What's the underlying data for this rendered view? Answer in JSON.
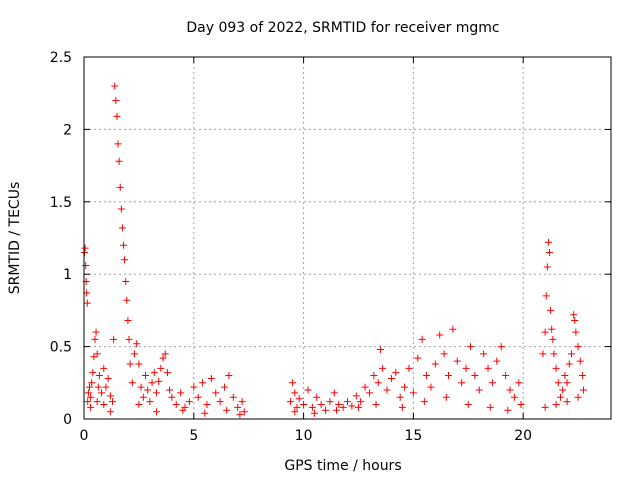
{
  "chart_data": {
    "type": "scatter",
    "title": "Day 093 of 2022, SRMTID for receiver mgmc",
    "xlabel": "GPS time / hours",
    "ylabel": "SRMTID / TECUs",
    "xlim": [
      0,
      24
    ],
    "ylim": [
      0,
      2.5
    ],
    "xticks": [
      0,
      5,
      10,
      15,
      20
    ],
    "xtick_labels": [
      "0",
      "5",
      "10",
      "15",
      "20"
    ],
    "yticks": [
      0,
      0.5,
      1,
      1.5,
      2,
      2.5
    ],
    "ytick_labels": [
      "0",
      "0.5",
      "1",
      "1.5",
      "2",
      "2.5"
    ],
    "grid": true,
    "marker": "+",
    "color": "#ff0000",
    "series": [
      {
        "name": "SRMTID",
        "points": [
          [
            0.02,
            1.15
          ],
          [
            0.05,
            1.18
          ],
          [
            0.08,
            1.06
          ],
          [
            0.1,
            0.95
          ],
          [
            0.12,
            0.87
          ],
          [
            0.15,
            0.8
          ],
          [
            0.17,
            0.12
          ],
          [
            0.2,
            0.18
          ],
          [
            0.25,
            0.22
          ],
          [
            0.3,
            0.15
          ],
          [
            0.35,
            0.25
          ],
          [
            0.4,
            0.32
          ],
          [
            0.45,
            0.43
          ],
          [
            0.5,
            0.55
          ],
          [
            0.55,
            0.6
          ],
          [
            0.6,
            0.45
          ],
          [
            0.65,
            0.22
          ],
          [
            0.7,
            0.3
          ],
          [
            0.8,
            0.18
          ],
          [
            0.9,
            0.35
          ],
          [
            1.0,
            0.22
          ],
          [
            1.1,
            0.28
          ],
          [
            1.2,
            0.16
          ],
          [
            1.3,
            0.12
          ],
          [
            1.35,
            0.55
          ],
          [
            1.4,
            2.3
          ],
          [
            1.45,
            2.2
          ],
          [
            1.5,
            2.09
          ],
          [
            1.55,
            1.9
          ],
          [
            1.6,
            1.78
          ],
          [
            1.65,
            1.6
          ],
          [
            1.7,
            1.45
          ],
          [
            1.75,
            1.32
          ],
          [
            1.8,
            1.2
          ],
          [
            1.85,
            1.1
          ],
          [
            1.9,
            0.95
          ],
          [
            1.95,
            0.82
          ],
          [
            2.0,
            0.68
          ],
          [
            2.05,
            0.55
          ],
          [
            2.1,
            0.38
          ],
          [
            2.2,
            0.25
          ],
          [
            2.3,
            0.45
          ],
          [
            2.4,
            0.52
          ],
          [
            2.5,
            0.38
          ],
          [
            2.6,
            0.22
          ],
          [
            2.7,
            0.15
          ],
          [
            2.8,
            0.3
          ],
          [
            2.9,
            0.2
          ],
          [
            3.0,
            0.12
          ],
          [
            3.1,
            0.25
          ],
          [
            3.2,
            0.32
          ],
          [
            3.3,
            0.18
          ],
          [
            3.4,
            0.26
          ],
          [
            3.5,
            0.35
          ],
          [
            3.6,
            0.42
          ],
          [
            3.7,
            0.45
          ],
          [
            3.8,
            0.32
          ],
          [
            3.9,
            0.2
          ],
          [
            4.0,
            0.15
          ],
          [
            4.2,
            0.1
          ],
          [
            4.4,
            0.18
          ],
          [
            4.6,
            0.08
          ],
          [
            4.8,
            0.12
          ],
          [
            5.0,
            0.22
          ],
          [
            5.2,
            0.15
          ],
          [
            5.4,
            0.25
          ],
          [
            5.6,
            0.1
          ],
          [
            5.8,
            0.28
          ],
          [
            6.0,
            0.18
          ],
          [
            6.2,
            0.12
          ],
          [
            6.4,
            0.22
          ],
          [
            6.6,
            0.3
          ],
          [
            6.8,
            0.15
          ],
          [
            7.0,
            0.08
          ],
          [
            7.2,
            0.12
          ],
          [
            7.3,
            0.05
          ],
          [
            0.3,
            0.08
          ],
          [
            0.6,
            0.12
          ],
          [
            0.9,
            0.1
          ],
          [
            1.2,
            0.05
          ],
          [
            2.5,
            0.1
          ],
          [
            3.3,
            0.05
          ],
          [
            4.5,
            0.06
          ],
          [
            5.5,
            0.04
          ],
          [
            6.5,
            0.06
          ],
          [
            7.1,
            0.03
          ],
          [
            9.4,
            0.12
          ],
          [
            9.5,
            0.25
          ],
          [
            9.6,
            0.18
          ],
          [
            9.7,
            0.08
          ],
          [
            9.8,
            0.14
          ],
          [
            10.0,
            0.1
          ],
          [
            10.2,
            0.2
          ],
          [
            10.4,
            0.08
          ],
          [
            10.6,
            0.15
          ],
          [
            10.8,
            0.1
          ],
          [
            11.0,
            0.06
          ],
          [
            11.2,
            0.12
          ],
          [
            11.4,
            0.18
          ],
          [
            11.6,
            0.1
          ],
          [
            11.8,
            0.08
          ],
          [
            12.0,
            0.12
          ],
          [
            12.2,
            0.09
          ],
          [
            12.4,
            0.16
          ],
          [
            12.6,
            0.12
          ],
          [
            12.8,
            0.22
          ],
          [
            13.0,
            0.18
          ],
          [
            13.2,
            0.3
          ],
          [
            13.4,
            0.25
          ],
          [
            13.5,
            0.48
          ],
          [
            13.6,
            0.35
          ],
          [
            13.8,
            0.2
          ],
          [
            14.0,
            0.28
          ],
          [
            14.2,
            0.32
          ],
          [
            14.4,
            0.15
          ],
          [
            14.6,
            0.22
          ],
          [
            14.8,
            0.35
          ],
          [
            15.0,
            0.18
          ],
          [
            15.2,
            0.42
          ],
          [
            15.4,
            0.55
          ],
          [
            15.6,
            0.3
          ],
          [
            15.8,
            0.22
          ],
          [
            16.0,
            0.38
          ],
          [
            16.2,
            0.58
          ],
          [
            16.4,
            0.45
          ],
          [
            16.6,
            0.3
          ],
          [
            16.8,
            0.62
          ],
          [
            17.0,
            0.4
          ],
          [
            17.2,
            0.25
          ],
          [
            17.4,
            0.35
          ],
          [
            17.6,
            0.5
          ],
          [
            17.8,
            0.3
          ],
          [
            18.0,
            0.2
          ],
          [
            18.2,
            0.45
          ],
          [
            18.4,
            0.35
          ],
          [
            18.6,
            0.25
          ],
          [
            18.8,
            0.4
          ],
          [
            19.0,
            0.5
          ],
          [
            19.2,
            0.3
          ],
          [
            19.4,
            0.2
          ],
          [
            19.6,
            0.15
          ],
          [
            19.8,
            0.25
          ],
          [
            19.9,
            0.1
          ],
          [
            9.6,
            0.05
          ],
          [
            10.5,
            0.04
          ],
          [
            11.5,
            0.06
          ],
          [
            12.5,
            0.08
          ],
          [
            13.3,
            0.1
          ],
          [
            14.5,
            0.08
          ],
          [
            15.5,
            0.12
          ],
          [
            16.5,
            0.15
          ],
          [
            17.5,
            0.1
          ],
          [
            18.5,
            0.08
          ],
          [
            19.3,
            0.06
          ],
          [
            20.9,
            0.45
          ],
          [
            21.0,
            0.6
          ],
          [
            21.05,
            0.85
          ],
          [
            21.1,
            1.05
          ],
          [
            21.15,
            1.22
          ],
          [
            21.2,
            1.15
          ],
          [
            21.25,
            0.75
          ],
          [
            21.3,
            0.62
          ],
          [
            21.35,
            0.55
          ],
          [
            21.4,
            0.45
          ],
          [
            21.5,
            0.35
          ],
          [
            21.6,
            0.25
          ],
          [
            21.7,
            0.15
          ],
          [
            21.8,
            0.2
          ],
          [
            21.9,
            0.3
          ],
          [
            22.0,
            0.25
          ],
          [
            22.1,
            0.38
          ],
          [
            22.2,
            0.45
          ],
          [
            22.3,
            0.72
          ],
          [
            22.35,
            0.68
          ],
          [
            22.4,
            0.6
          ],
          [
            22.5,
            0.5
          ],
          [
            22.6,
            0.4
          ],
          [
            22.7,
            0.3
          ],
          [
            22.75,
            0.2
          ],
          [
            21.0,
            0.08
          ],
          [
            21.5,
            0.1
          ],
          [
            22.0,
            0.12
          ],
          [
            22.5,
            0.15
          ]
        ]
      }
    ]
  }
}
